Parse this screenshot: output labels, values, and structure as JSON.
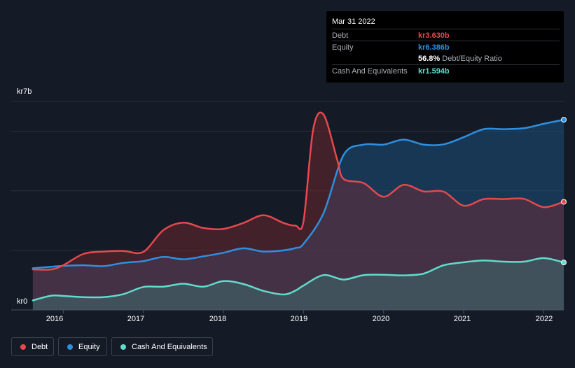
{
  "tooltip": {
    "date": "Mar 31 2022",
    "debt_label": "Debt",
    "debt_value": "kr3.630b",
    "equity_label": "Equity",
    "equity_value": "kr6.386b",
    "ratio_value": "56.8%",
    "ratio_label": "Debt/Equity Ratio",
    "cash_label": "Cash And Equivalents",
    "cash_value": "kr1.594b"
  },
  "colors": {
    "debt": "#e5484d",
    "equity": "#2d8fe0",
    "cash": "#5fdccb",
    "background": "#151b26"
  },
  "chart_data": {
    "type": "area",
    "title": "",
    "xlabel": "",
    "ylabel": "",
    "y_top_label": "kr7b",
    "y_bottom_label": "kr0",
    "ylim": [
      0,
      7
    ],
    "xlim": [
      2015.35,
      2022.25
    ],
    "x_ticks": [
      {
        "value": 2016,
        "label": "2016"
      },
      {
        "value": 2017,
        "label": "2017"
      },
      {
        "value": 2018,
        "label": "2018"
      },
      {
        "value": 2019,
        "label": "2019"
      },
      {
        "value": 2020,
        "label": "2020"
      },
      {
        "value": 2021,
        "label": "2021"
      },
      {
        "value": 2022,
        "label": "2022"
      }
    ],
    "gridlines": [
      2,
      4,
      6
    ],
    "series": [
      {
        "name": "Equity",
        "color": "#2d8fe0",
        "points": [
          [
            2015.62,
            1.4
          ],
          [
            2015.85,
            1.45
          ],
          [
            2016.0,
            1.48
          ],
          [
            2016.25,
            1.5
          ],
          [
            2016.5,
            1.47
          ],
          [
            2016.75,
            1.58
          ],
          [
            2017.0,
            1.64
          ],
          [
            2017.25,
            1.78
          ],
          [
            2017.5,
            1.7
          ],
          [
            2017.75,
            1.8
          ],
          [
            2018.0,
            1.92
          ],
          [
            2018.25,
            2.07
          ],
          [
            2018.5,
            1.96
          ],
          [
            2018.75,
            2.0
          ],
          [
            2018.9,
            2.08
          ],
          [
            2019.0,
            2.22
          ],
          [
            2019.25,
            3.25
          ],
          [
            2019.5,
            5.2
          ],
          [
            2019.75,
            5.55
          ],
          [
            2020.0,
            5.55
          ],
          [
            2020.25,
            5.72
          ],
          [
            2020.5,
            5.55
          ],
          [
            2020.75,
            5.56
          ],
          [
            2021.0,
            5.8
          ],
          [
            2021.25,
            6.07
          ],
          [
            2021.5,
            6.07
          ],
          [
            2021.75,
            6.1
          ],
          [
            2022.0,
            6.25
          ],
          [
            2022.25,
            6.386
          ]
        ]
      },
      {
        "name": "Debt",
        "color": "#e5484d",
        "points": [
          [
            2015.62,
            1.36
          ],
          [
            2015.85,
            1.36
          ],
          [
            2016.0,
            1.5
          ],
          [
            2016.25,
            1.88
          ],
          [
            2016.5,
            1.96
          ],
          [
            2016.75,
            1.98
          ],
          [
            2017.0,
            1.95
          ],
          [
            2017.25,
            2.68
          ],
          [
            2017.5,
            2.93
          ],
          [
            2017.75,
            2.75
          ],
          [
            2018.0,
            2.72
          ],
          [
            2018.25,
            2.92
          ],
          [
            2018.5,
            3.18
          ],
          [
            2018.75,
            2.92
          ],
          [
            2018.9,
            2.83
          ],
          [
            2019.0,
            2.98
          ],
          [
            2019.12,
            6.05
          ],
          [
            2019.25,
            6.56
          ],
          [
            2019.42,
            5.05
          ],
          [
            2019.5,
            4.4
          ],
          [
            2019.75,
            4.26
          ],
          [
            2020.0,
            3.8
          ],
          [
            2020.25,
            4.2
          ],
          [
            2020.5,
            3.98
          ],
          [
            2020.75,
            3.97
          ],
          [
            2021.0,
            3.5
          ],
          [
            2021.25,
            3.72
          ],
          [
            2021.5,
            3.72
          ],
          [
            2021.75,
            3.73
          ],
          [
            2022.0,
            3.45
          ],
          [
            2022.25,
            3.63
          ]
        ]
      },
      {
        "name": "Cash And Equivalents",
        "color": "#5fdccb",
        "points": [
          [
            2015.62,
            0.32
          ],
          [
            2015.85,
            0.48
          ],
          [
            2016.0,
            0.47
          ],
          [
            2016.25,
            0.43
          ],
          [
            2016.5,
            0.43
          ],
          [
            2016.75,
            0.53
          ],
          [
            2017.0,
            0.77
          ],
          [
            2017.25,
            0.78
          ],
          [
            2017.5,
            0.88
          ],
          [
            2017.75,
            0.78
          ],
          [
            2018.0,
            0.97
          ],
          [
            2018.25,
            0.87
          ],
          [
            2018.5,
            0.64
          ],
          [
            2018.75,
            0.52
          ],
          [
            2018.9,
            0.65
          ],
          [
            2019.0,
            0.82
          ],
          [
            2019.25,
            1.17
          ],
          [
            2019.5,
            1.02
          ],
          [
            2019.75,
            1.17
          ],
          [
            2020.0,
            1.18
          ],
          [
            2020.25,
            1.16
          ],
          [
            2020.5,
            1.22
          ],
          [
            2020.75,
            1.5
          ],
          [
            2021.0,
            1.6
          ],
          [
            2021.25,
            1.66
          ],
          [
            2021.5,
            1.62
          ],
          [
            2021.75,
            1.62
          ],
          [
            2022.0,
            1.74
          ],
          [
            2022.25,
            1.594
          ]
        ]
      }
    ],
    "legend": [
      "Debt",
      "Equity",
      "Cash And Equivalents"
    ],
    "legend_position": "bottom-left"
  }
}
